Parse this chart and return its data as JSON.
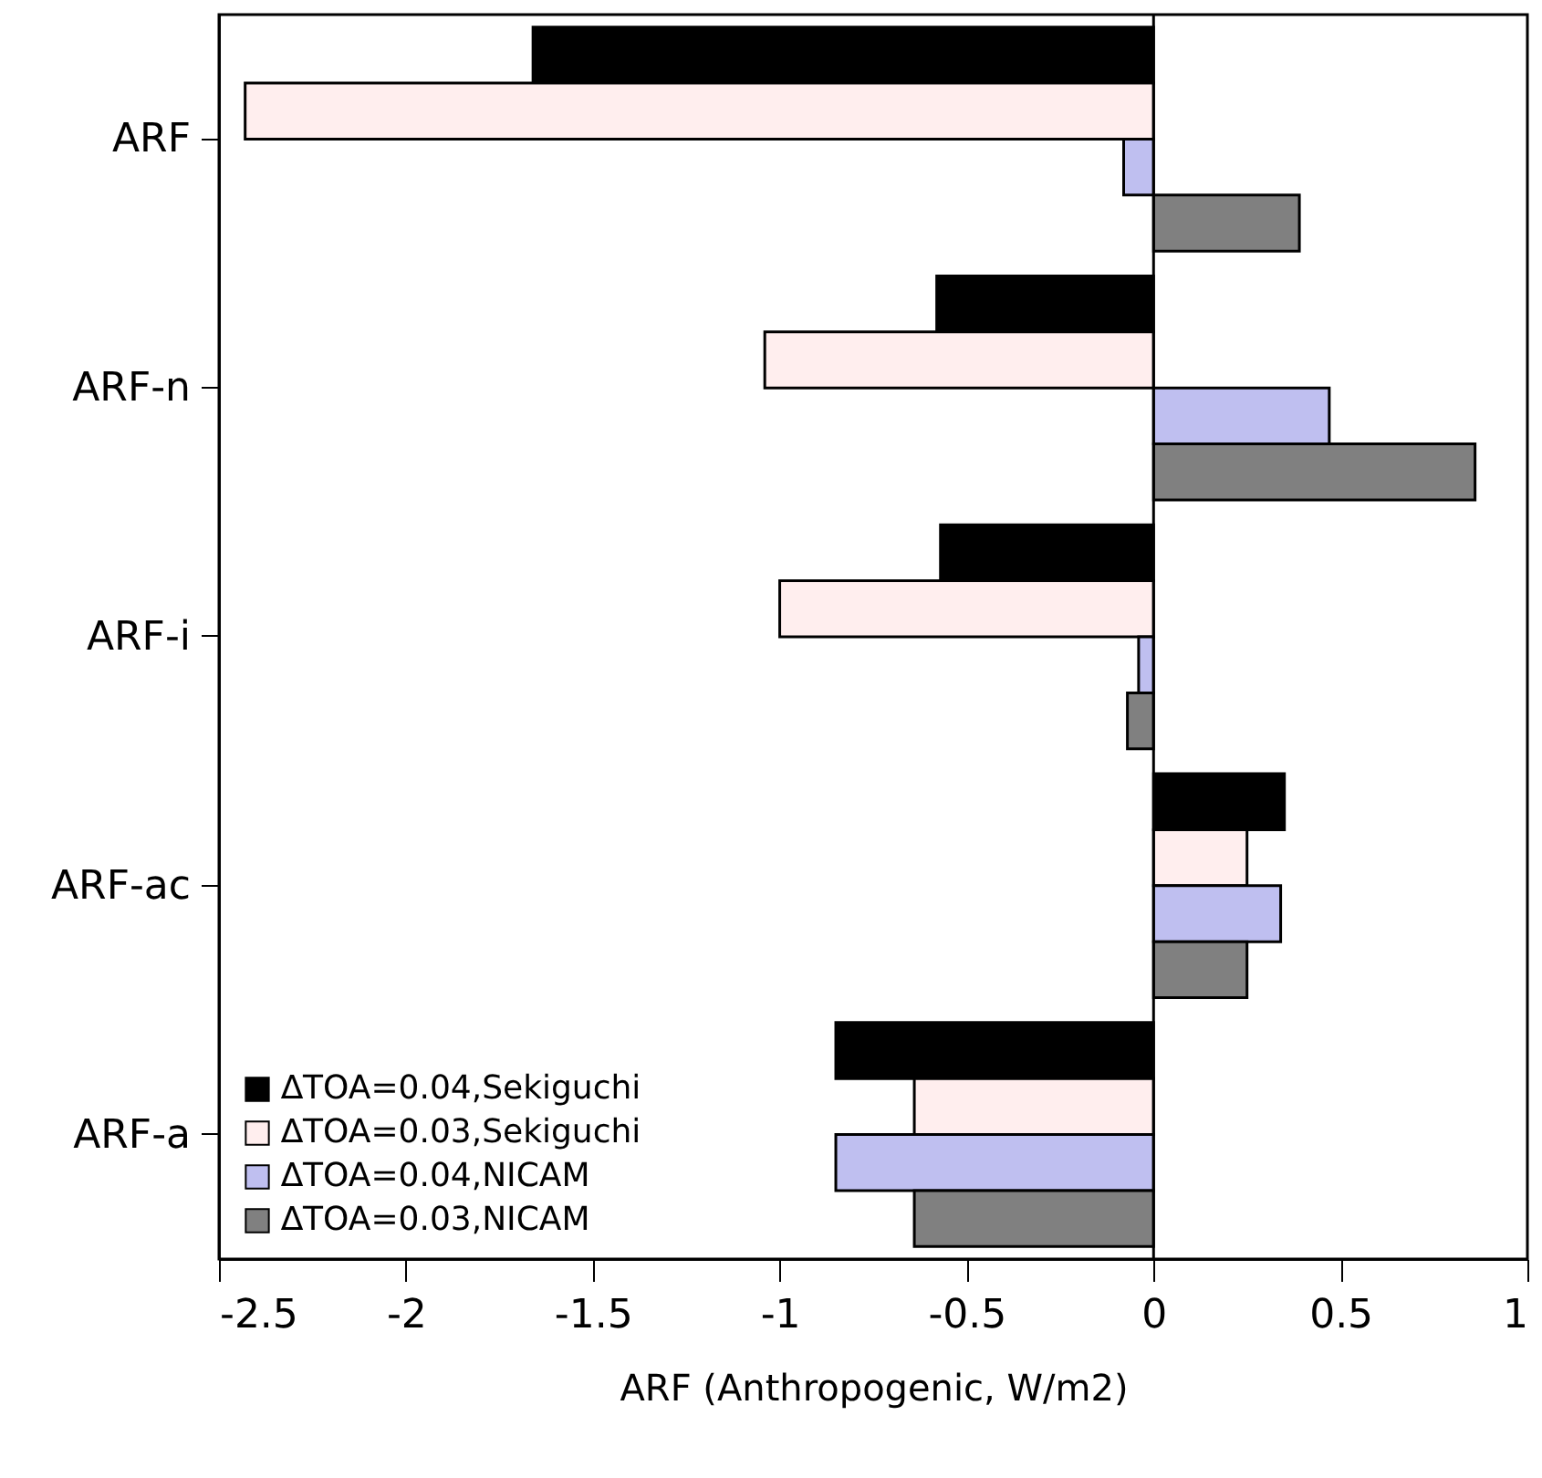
{
  "chart_data": {
    "type": "bar",
    "orientation": "horizontal",
    "xlabel": "ARF  (Anthropogenic,  W/m2)",
    "categories": [
      "ARF",
      "ARF-n",
      "ARF-i",
      "ARF-ac",
      "ARF-a"
    ],
    "series": [
      {
        "name": "∆TOA=0.04,Sekiguchi",
        "color": "#000000",
        "values": [
          -1.66,
          -0.58,
          -0.57,
          0.35,
          -0.85
        ]
      },
      {
        "name": "∆TOA=0.03,Sekiguchi",
        "color": "#ffeeee",
        "values": [
          -2.43,
          -1.04,
          -1.0,
          0.25,
          -0.64
        ]
      },
      {
        "name": "∆TOA=0.04,NICAM",
        "color": "#bfbff0",
        "values": [
          -0.08,
          0.47,
          -0.04,
          0.34,
          -0.85
        ]
      },
      {
        "name": "∆TOA=0.03,NICAM",
        "color": "#808080",
        "values": [
          0.39,
          0.86,
          -0.07,
          0.25,
          -0.64
        ]
      }
    ],
    "xlim": [
      -2.5,
      1
    ],
    "xticks": [
      -2.5,
      -2,
      -1.5,
      -1,
      -0.5,
      0,
      0.5,
      1
    ],
    "ref_lines": [
      {
        "axis": "x",
        "value": 0
      }
    ],
    "legend": "bottom left",
    "grid": false
  }
}
